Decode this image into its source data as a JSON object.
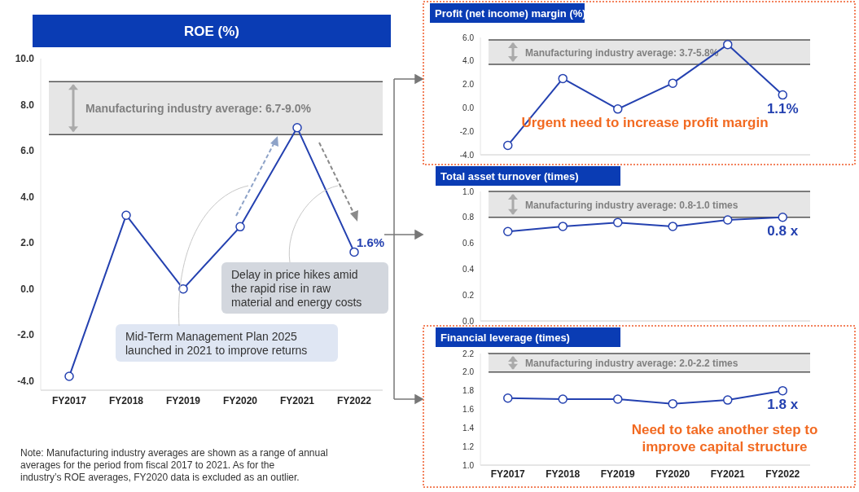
{
  "chart_data": [
    {
      "type": "line",
      "title": "ROE (%)",
      "categories": [
        "FY2017",
        "FY2018",
        "FY2019",
        "FY2020",
        "FY2021",
        "FY2022"
      ],
      "series": [
        {
          "color": "#2441b0",
          "values": [
            -3.8,
            3.2,
            0.0,
            2.7,
            7.0,
            1.6
          ],
          "value_labels": [
            null,
            null,
            null,
            null,
            null,
            "1.6%"
          ]
        }
      ],
      "ylim": [
        -4.4,
        10.0
      ],
      "yticks": [
        {
          "value": -4,
          "label": "-4.0"
        },
        {
          "value": -2,
          "label": "-2.0"
        },
        {
          "value": 0,
          "label": "0.0"
        },
        {
          "value": 2,
          "label": "2.0"
        },
        {
          "value": 4,
          "label": "4.0"
        },
        {
          "value": 6,
          "label": "6.0"
        },
        {
          "value": 8,
          "label": "8.0"
        },
        {
          "value": 10,
          "label": "10.0"
        }
      ],
      "bands": [
        {
          "axis": "y",
          "from": 6.7,
          "to": 9.0,
          "label": "Manufacturing industry average: 6.7-9.0%",
          "color": "#e6e6e6"
        }
      ],
      "annotations": [
        "Mid-Term Management Plan 2025 launched in 2021 to improve returns",
        "Delay in price hikes amid the rapid rise in raw material and energy costs",
        "Note: Manufacturing industry averages are shown as a range of annual averages for the period from fiscal 2017 to 2021. As for the industry’s ROE averages, FY2020 data is excluded as an outlier."
      ],
      "marker": "circle",
      "grid": false
    },
    {
      "type": "line",
      "title": "Profit (net income) margin (%)",
      "categories": [
        null,
        null,
        null,
        null,
        null,
        null
      ],
      "series": [
        {
          "color": "#2441b0",
          "values": [
            -3.2,
            2.5,
            -0.1,
            2.1,
            5.4,
            1.1
          ],
          "value_labels": [
            null,
            null,
            null,
            null,
            null,
            "1.1%"
          ]
        }
      ],
      "ylim": [
        -4.0,
        6.0
      ],
      "yticks": [
        {
          "value": -4,
          "label": "-4.0"
        },
        {
          "value": -2,
          "label": "-2.0"
        },
        {
          "value": 0,
          "label": "0.0"
        },
        {
          "value": 2,
          "label": "2.0"
        },
        {
          "value": 4,
          "label": "4.0"
        },
        {
          "value": 6,
          "label": "6.0"
        }
      ],
      "bands": [
        {
          "axis": "y",
          "from": 3.7,
          "to": 5.8,
          "label": "Manufacturing industry average: 3.7-5.8%",
          "color": "#e6e6e6"
        }
      ],
      "annotations": [
        "Urgent need to increase profit margin"
      ],
      "marker": "circle",
      "grid": false
    },
    {
      "type": "line",
      "title": "Total asset turnover (times)",
      "categories": [
        null,
        null,
        null,
        null,
        null,
        null
      ],
      "series": [
        {
          "color": "#2441b0",
          "values": [
            0.69,
            0.73,
            0.76,
            0.73,
            0.78,
            0.8
          ],
          "value_labels": [
            null,
            null,
            null,
            null,
            null,
            "0.8 x"
          ]
        }
      ],
      "ylim": [
        0.0,
        1.0
      ],
      "yticks": [
        {
          "value": 0,
          "label": "0.0"
        },
        0.2,
        0.4,
        0.6,
        0.8,
        {
          "value": 1,
          "label": "1.0"
        }
      ],
      "bands": [
        {
          "axis": "y",
          "from": 0.8,
          "to": 1.0,
          "label": "Manufacturing industry average: 0.8-1.0 times",
          "color": "#e6e6e6"
        }
      ],
      "marker": "circle",
      "grid": false
    },
    {
      "type": "line",
      "title": "Financial leverage (times)",
      "categories": [
        "FY2017",
        "FY2018",
        "FY2019",
        "FY2020",
        "FY2021",
        "FY2022"
      ],
      "series": [
        {
          "color": "#2441b0",
          "values": [
            1.72,
            1.71,
            1.71,
            1.66,
            1.7,
            1.8
          ],
          "value_labels": [
            null,
            null,
            null,
            null,
            null,
            "1.8 x"
          ]
        }
      ],
      "ylim": [
        1.0,
        2.2
      ],
      "yticks": [
        {
          "value": 1,
          "label": "1.0"
        },
        1.2,
        1.4,
        1.6,
        1.8,
        {
          "value": 2,
          "label": "2.0"
        },
        2.2
      ],
      "bands": [
        {
          "axis": "y",
          "from": 2.0,
          "to": 2.2,
          "label": "Manufacturing industry average: 2.0-2.2 times",
          "color": "#e6e6e6"
        }
      ],
      "annotations": [
        "Need to take another step to improve capital structure"
      ],
      "marker": "circle",
      "grid": false
    }
  ]
}
